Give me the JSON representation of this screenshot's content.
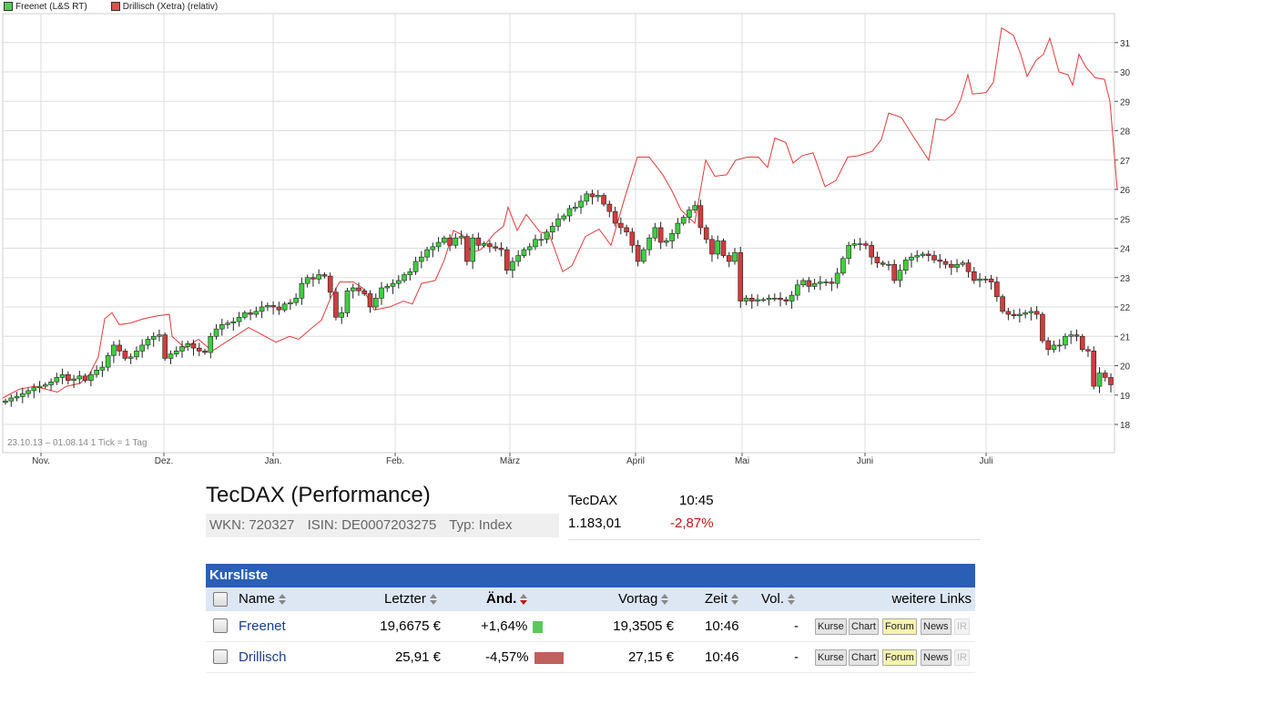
{
  "chart_data": {
    "type": "candlestick+line",
    "date_range_label": "23.10.13 – 01.08.14",
    "tick_label": "1 Tick = 1 Tag",
    "legend": [
      {
        "name": "Freenet (L&S RT)",
        "color": "#5cc85c"
      },
      {
        "name": "Drillisch (Xetra) (relativ)",
        "color": "#e05050"
      }
    ],
    "ylim": [
      17,
      32
    ],
    "y_ticks": [
      18,
      19,
      20,
      21,
      22,
      23,
      24,
      25,
      26,
      27,
      28,
      29,
      30,
      31
    ],
    "x_ticks": [
      "Nov.",
      "Dez.",
      "Jan.",
      "Feb.",
      "März",
      "April",
      "Mai",
      "Juni",
      "Juli"
    ],
    "grid": true,
    "freenet_closes": [
      18.8,
      18.9,
      18.95,
      19.05,
      19.15,
      19.25,
      19.3,
      19.35,
      19.45,
      19.6,
      19.7,
      19.5,
      19.55,
      19.65,
      19.5,
      19.7,
      19.85,
      19.95,
      20.35,
      20.7,
      20.5,
      20.25,
      20.3,
      20.5,
      20.7,
      20.9,
      21.0,
      21.05,
      20.25,
      20.4,
      20.5,
      20.65,
      20.75,
      20.6,
      20.5,
      20.45,
      21.0,
      21.25,
      21.4,
      21.45,
      21.5,
      21.65,
      21.8,
      21.75,
      21.85,
      22.0,
      22.05,
      22.0,
      21.9,
      22.1,
      22.15,
      22.3,
      22.8,
      23.0,
      22.95,
      23.1,
      23.05,
      22.5,
      21.65,
      21.8,
      22.55,
      22.65,
      22.55,
      22.45,
      22.0,
      22.3,
      22.65,
      22.7,
      22.8,
      22.9,
      23.1,
      23.2,
      23.55,
      23.7,
      23.95,
      24.05,
      24.2,
      24.35,
      24.1,
      24.35,
      24.4,
      23.55,
      24.35,
      24.1,
      24.15,
      24.05,
      24.0,
      23.95,
      23.25,
      23.55,
      23.75,
      23.95,
      24.05,
      24.3,
      24.3,
      24.55,
      24.75,
      25.0,
      25.1,
      25.35,
      25.4,
      25.6,
      25.85,
      25.75,
      25.8,
      25.5,
      25.25,
      24.85,
      24.7,
      24.55,
      24.1,
      23.55,
      23.95,
      24.35,
      24.7,
      24.2,
      24.25,
      24.5,
      24.85,
      25.05,
      25.3,
      25.45,
      24.7,
      24.3,
      23.8,
      24.25,
      23.75,
      23.55,
      23.85,
      22.2,
      22.3,
      22.2,
      22.25,
      22.25,
      22.3,
      22.3,
      22.25,
      22.2,
      22.4,
      22.75,
      22.9,
      22.7,
      22.8,
      22.85,
      22.85,
      22.8,
      23.15,
      23.65,
      24.1,
      24.15,
      24.15,
      24.1,
      23.7,
      23.5,
      23.45,
      23.45,
      22.9,
      23.25,
      23.6,
      23.7,
      23.75,
      23.8,
      23.75,
      23.6,
      23.55,
      23.45,
      23.35,
      23.45,
      23.5,
      23.2,
      22.9,
      22.95,
      22.95,
      22.85,
      22.35,
      21.85,
      21.75,
      21.7,
      21.75,
      21.8,
      21.85,
      21.75,
      20.85,
      20.55,
      20.7,
      20.7,
      21.0,
      21.05,
      21.0,
      20.55,
      20.5,
      19.3,
      19.75,
      19.6,
      19.35
    ],
    "drillisch_line": [
      [
        0,
        18.9
      ],
      [
        18,
        19.2
      ],
      [
        35,
        19.3
      ],
      [
        60,
        19.1
      ],
      [
        70,
        19.3
      ],
      [
        85,
        19.4
      ],
      [
        95,
        19.7
      ],
      [
        105,
        20.3
      ],
      [
        112,
        21.6
      ],
      [
        120,
        21.8
      ],
      [
        128,
        21.4
      ],
      [
        140,
        21.45
      ],
      [
        155,
        21.6
      ],
      [
        170,
        21.7
      ],
      [
        183,
        21.75
      ],
      [
        186,
        21.0
      ],
      [
        200,
        20.6
      ],
      [
        215,
        20.9
      ],
      [
        230,
        20.5
      ],
      [
        245,
        20.8
      ],
      [
        255,
        21.0
      ],
      [
        270,
        21.3
      ],
      [
        285,
        21.05
      ],
      [
        300,
        20.8
      ],
      [
        315,
        21.0
      ],
      [
        325,
        20.9
      ],
      [
        340,
        21.3
      ],
      [
        350,
        21.55
      ],
      [
        360,
        22.3
      ],
      [
        370,
        22.85
      ],
      [
        385,
        22.85
      ],
      [
        395,
        22.65
      ],
      [
        408,
        21.9
      ],
      [
        425,
        22.0
      ],
      [
        440,
        22.2
      ],
      [
        450,
        22.1
      ],
      [
        460,
        22.8
      ],
      [
        475,
        22.9
      ],
      [
        485,
        23.6
      ],
      [
        495,
        24.6
      ],
      [
        505,
        24.45
      ],
      [
        515,
        23.85
      ],
      [
        525,
        23.95
      ],
      [
        540,
        24.5
      ],
      [
        550,
        24.75
      ],
      [
        555,
        25.4
      ],
      [
        565,
        24.6
      ],
      [
        575,
        25.15
      ],
      [
        590,
        24.55
      ],
      [
        600,
        24.5
      ],
      [
        615,
        23.2
      ],
      [
        625,
        23.4
      ],
      [
        640,
        24.4
      ],
      [
        655,
        24.65
      ],
      [
        668,
        24.1
      ],
      [
        683,
        25.7
      ],
      [
        697,
        27.1
      ],
      [
        710,
        27.1
      ],
      [
        725,
        26.5
      ],
      [
        735,
        25.95
      ],
      [
        745,
        25.3
      ],
      [
        760,
        24.85
      ],
      [
        772,
        27.0
      ],
      [
        782,
        26.45
      ],
      [
        795,
        26.5
      ],
      [
        805,
        27.0
      ],
      [
        818,
        27.1
      ],
      [
        830,
        27.1
      ],
      [
        840,
        26.75
      ],
      [
        848,
        27.75
      ],
      [
        860,
        27.6
      ],
      [
        868,
        26.9
      ],
      [
        878,
        27.15
      ],
      [
        890,
        27.25
      ],
      [
        903,
        26.1
      ],
      [
        915,
        26.3
      ],
      [
        928,
        27.1
      ],
      [
        940,
        27.15
      ],
      [
        955,
        27.3
      ],
      [
        965,
        27.7
      ],
      [
        973,
        28.6
      ],
      [
        987,
        28.45
      ],
      [
        1000,
        27.8
      ],
      [
        1017,
        27.0
      ],
      [
        1025,
        28.4
      ],
      [
        1035,
        28.35
      ],
      [
        1045,
        28.6
      ],
      [
        1052,
        29.05
      ],
      [
        1060,
        29.9
      ],
      [
        1065,
        29.25
      ],
      [
        1080,
        29.3
      ],
      [
        1088,
        29.65
      ],
      [
        1097,
        31.5
      ],
      [
        1110,
        31.25
      ],
      [
        1118,
        30.6
      ],
      [
        1125,
        29.85
      ],
      [
        1135,
        30.4
      ],
      [
        1143,
        30.6
      ],
      [
        1150,
        31.15
      ],
      [
        1160,
        30.0
      ],
      [
        1170,
        29.9
      ],
      [
        1175,
        29.55
      ],
      [
        1182,
        30.6
      ],
      [
        1190,
        30.15
      ],
      [
        1200,
        29.8
      ],
      [
        1210,
        29.75
      ],
      [
        1216,
        29.0
      ],
      [
        1224,
        26.0
      ]
    ]
  },
  "info": {
    "title": "TecDAX (Performance)",
    "wkn": "WKN: 720327",
    "isin": "ISIN: DE0007203275",
    "typ": "Typ: Index",
    "quote_name": "TecDAX",
    "quote_time": "10:45",
    "quote_value": "1.183,01",
    "quote_change": "-2,87%",
    "change_color": "#c21414"
  },
  "kursliste": {
    "header": "Kursliste",
    "col_name": "Name",
    "col_letzter": "Letzter",
    "col_aend": "Änd.",
    "col_vortag": "Vortag",
    "col_zeit": "Zeit",
    "col_vol": "Vol.",
    "col_links": "weitere Links",
    "rows": [
      {
        "name": "Freenet",
        "letzter": "19,6675 €",
        "aend": "+1,64%",
        "aend_pct": 1.64,
        "bar_color": "#5cc85c",
        "vortag": "19,3505 €",
        "zeit": "10:46",
        "vol": "-",
        "links": [
          "Kurse",
          "Chart",
          "Forum",
          "News",
          "IR"
        ]
      },
      {
        "name": "Drillisch",
        "letzter": "25,91 €",
        "aend": "-4,57%",
        "aend_pct": -4.57,
        "bar_color": "#c0605c",
        "vortag": "27,15 €",
        "zeit": "10:46",
        "vol": "-",
        "links": [
          "Kurse",
          "Chart",
          "Forum",
          "News",
          "IR"
        ]
      }
    ]
  }
}
